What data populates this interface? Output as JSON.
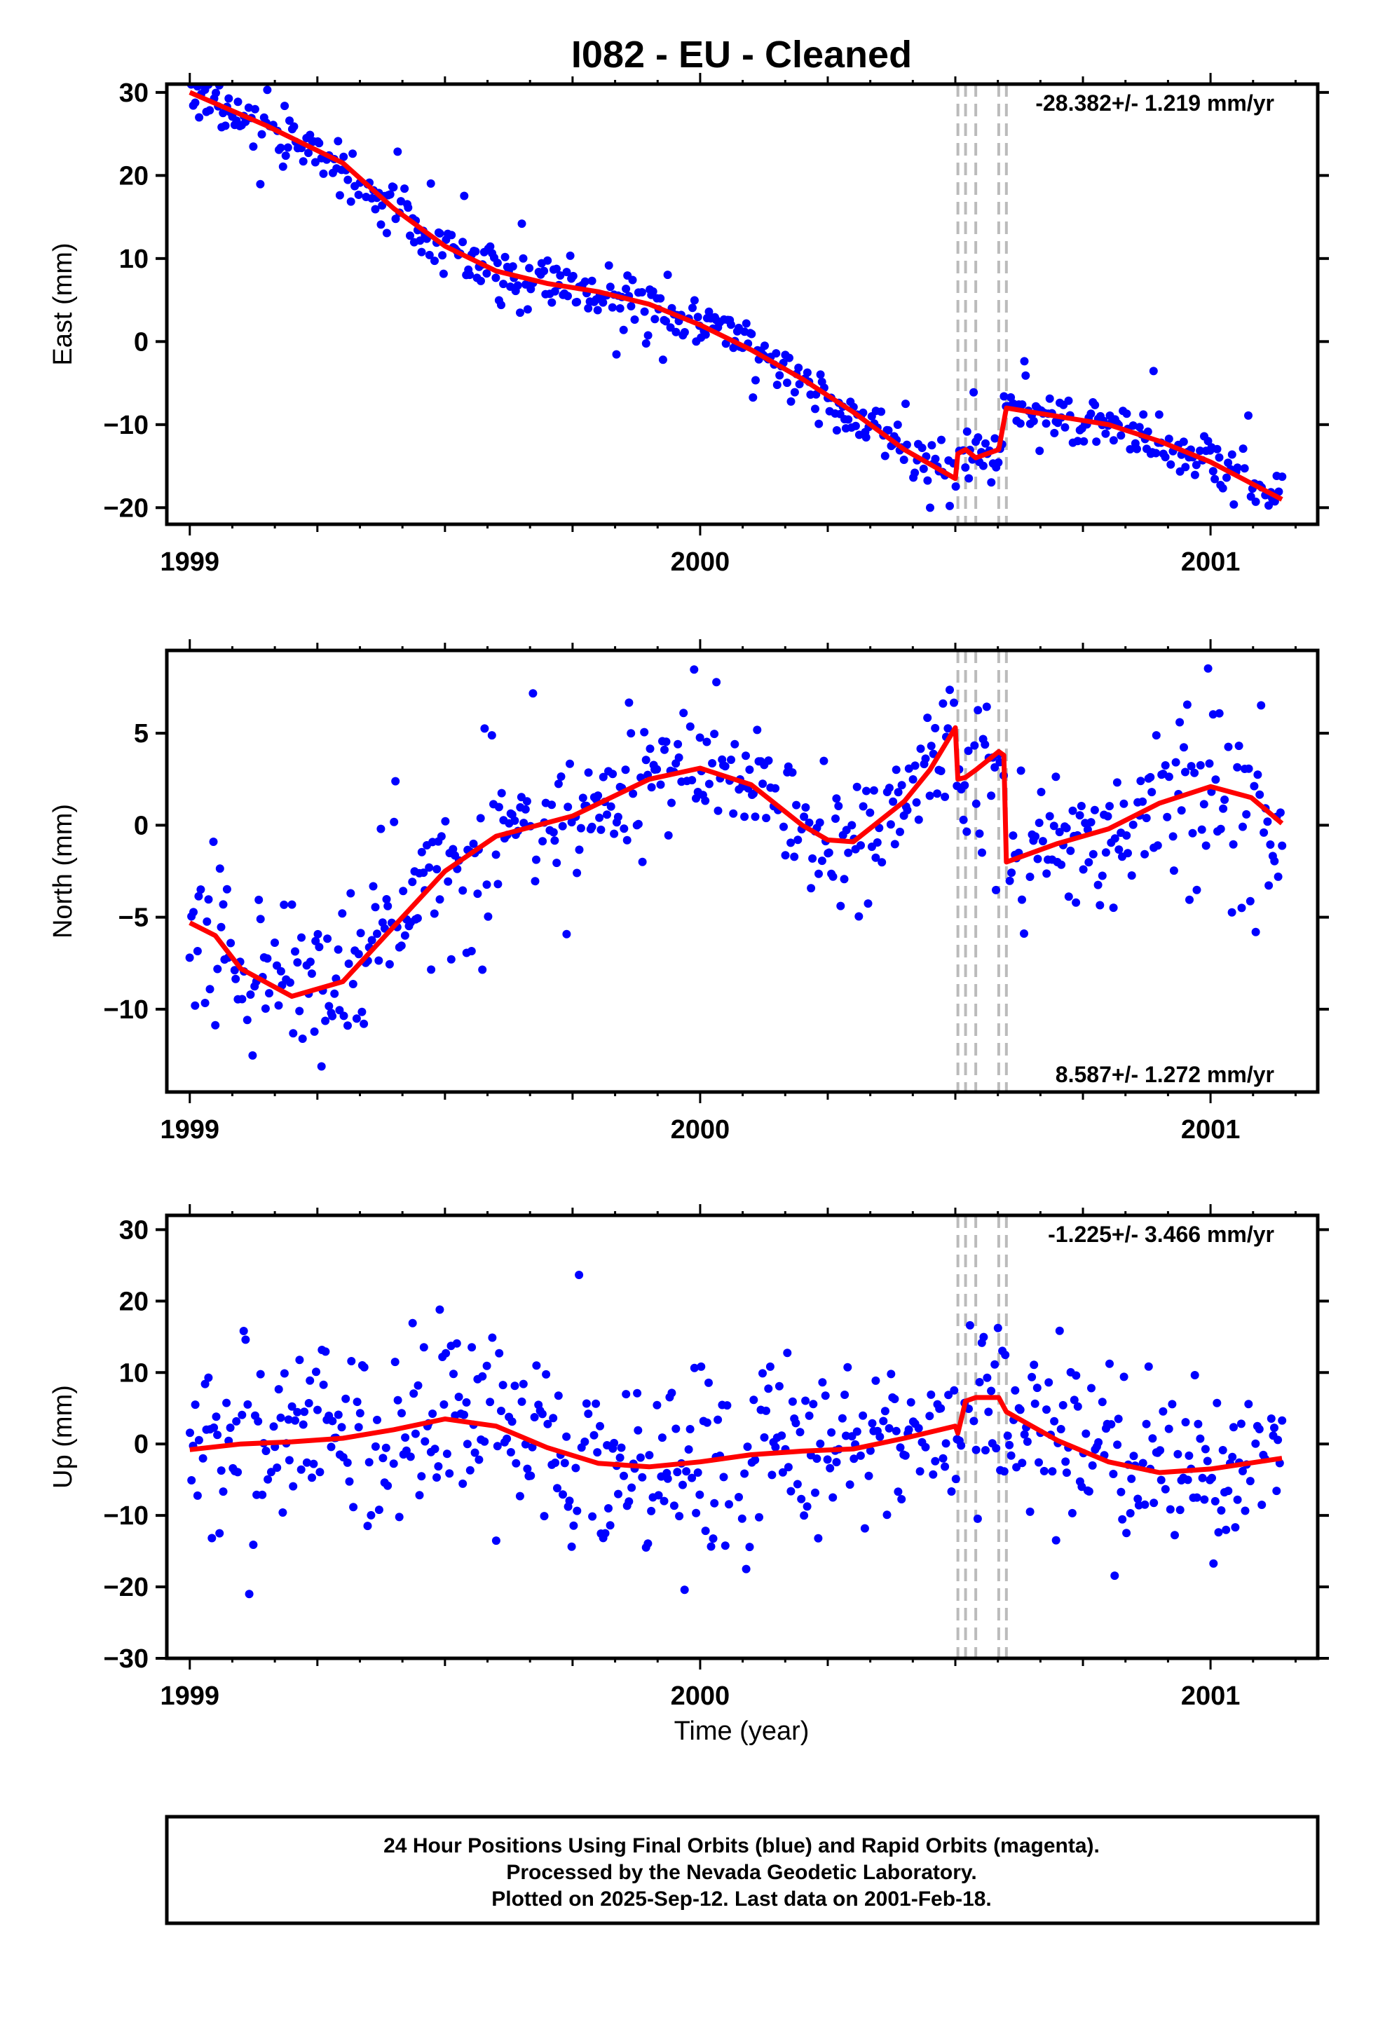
{
  "title": "I082  - EU - Cleaned",
  "xlabel": "Time (year)",
  "colors": {
    "data": "#0000ff",
    "model": "#ff0000",
    "steps": "#bbbbbb",
    "frame": "#000000"
  },
  "footer": {
    "line1": "24 Hour Positions Using Final Orbits (blue) and Rapid Orbits (magenta).",
    "line2": "Processed by the Nevada Geodetic Laboratory.",
    "line3": "Plotted on 2025-Sep-12. Last data on 2001-Feb-18."
  },
  "chart_data": [
    {
      "type": "scatter",
      "panel": "east",
      "ylabel": "East (mm)",
      "rate_label": "-28.382+/- 1.219 mm/yr",
      "rate_placement": "top-right",
      "xlim": [
        1998.955,
        2001.21
      ],
      "ylim": [
        -22,
        31
      ],
      "xticks": [
        "1999",
        "2000",
        "2001"
      ],
      "yticks": [
        "−20",
        "−10",
        "0",
        "10",
        "20",
        "30"
      ],
      "ytick_values": [
        -20,
        -10,
        0,
        10,
        20,
        30
      ],
      "step_epochs": [
        2000.505,
        2000.52,
        2000.54,
        2000.585,
        2000.6
      ],
      "model_line": [
        [
          1999.0,
          30.0
        ],
        [
          1999.15,
          26.0
        ],
        [
          1999.3,
          21.5
        ],
        [
          1999.4,
          16.0
        ],
        [
          1999.5,
          11.5
        ],
        [
          1999.6,
          8.5
        ],
        [
          1999.7,
          7.0
        ],
        [
          1999.8,
          6.0
        ],
        [
          1999.9,
          4.5
        ],
        [
          2000.0,
          2.0
        ],
        [
          2000.1,
          -1.0
        ],
        [
          2000.2,
          -4.5
        ],
        [
          2000.3,
          -8.5
        ],
        [
          2000.4,
          -13.0
        ],
        [
          2000.5,
          -16.5
        ],
        [
          2000.505,
          -13.5
        ],
        [
          2000.52,
          -13.0
        ],
        [
          2000.54,
          -14.0
        ],
        [
          2000.585,
          -13.0
        ],
        [
          2000.6,
          -8.0
        ],
        [
          2000.7,
          -9.0
        ],
        [
          2000.8,
          -10.0
        ],
        [
          2000.9,
          -12.0
        ],
        [
          2001.0,
          -14.5
        ],
        [
          2001.14,
          -19.0
        ]
      ],
      "series_params": {
        "trend": "model_line",
        "noise_mm": 1.6,
        "outlier_mm": 4,
        "count": 590,
        "seed": 11
      }
    },
    {
      "type": "scatter",
      "panel": "north",
      "ylabel": "North (mm)",
      "rate_label": "8.587+/- 1.272 mm/yr",
      "rate_placement": "bottom-right",
      "xlim": [
        1998.955,
        2001.21
      ],
      "ylim": [
        -14.5,
        9.5
      ],
      "xticks": [
        "1999",
        "2000",
        "2001"
      ],
      "yticks": [
        "−10",
        "−5",
        "0",
        "5"
      ],
      "ytick_values": [
        -10,
        -5,
        0,
        5
      ],
      "step_epochs": [
        2000.505,
        2000.52,
        2000.54,
        2000.585,
        2000.6
      ],
      "model_line": [
        [
          1999.0,
          -5.3
        ],
        [
          1999.05,
          -6.0
        ],
        [
          1999.1,
          -7.8
        ],
        [
          1999.2,
          -9.3
        ],
        [
          1999.3,
          -8.5
        ],
        [
          1999.4,
          -5.5
        ],
        [
          1999.5,
          -2.5
        ],
        [
          1999.6,
          -0.6
        ],
        [
          1999.75,
          0.5
        ],
        [
          1999.9,
          2.5
        ],
        [
          2000.0,
          3.1
        ],
        [
          2000.1,
          2.2
        ],
        [
          2000.2,
          0.0
        ],
        [
          2000.25,
          -0.8
        ],
        [
          2000.3,
          -0.9
        ],
        [
          2000.4,
          1.3
        ],
        [
          2000.45,
          3.0
        ],
        [
          2000.5,
          5.3
        ],
        [
          2000.505,
          2.5
        ],
        [
          2000.52,
          2.6
        ],
        [
          2000.54,
          3.0
        ],
        [
          2000.585,
          4.0
        ],
        [
          2000.595,
          3.8
        ],
        [
          2000.6,
          -2.0
        ],
        [
          2000.7,
          -1.0
        ],
        [
          2000.8,
          -0.2
        ],
        [
          2000.9,
          1.2
        ],
        [
          2001.0,
          2.1
        ],
        [
          2001.08,
          1.5
        ],
        [
          2001.14,
          0.1
        ]
      ],
      "series_params": {
        "trend": "model_line",
        "noise_mm": 1.8,
        "outlier_mm": 4,
        "count": 590,
        "seed": 23
      }
    },
    {
      "type": "scatter",
      "panel": "up",
      "ylabel": "Up (mm)",
      "rate_label": "-1.225+/- 3.466 mm/yr",
      "rate_placement": "top-right",
      "xlim": [
        1998.955,
        2001.21
      ],
      "ylim": [
        -30,
        32
      ],
      "xticks": [
        "1999",
        "2000",
        "2001"
      ],
      "yticks": [
        "−30",
        "−20",
        "−10",
        "0",
        "10",
        "20",
        "30"
      ],
      "ytick_values": [
        -30,
        -20,
        -10,
        0,
        10,
        20,
        30
      ],
      "step_epochs": [
        2000.505,
        2000.52,
        2000.54,
        2000.585,
        2000.6
      ],
      "model_line": [
        [
          1999.0,
          -0.8
        ],
        [
          1999.1,
          0.0
        ],
        [
          1999.2,
          0.3
        ],
        [
          1999.3,
          0.8
        ],
        [
          1999.4,
          2.0
        ],
        [
          1999.5,
          3.5
        ],
        [
          1999.6,
          2.5
        ],
        [
          1999.7,
          -0.5
        ],
        [
          1999.8,
          -2.7
        ],
        [
          1999.9,
          -3.2
        ],
        [
          2000.0,
          -2.5
        ],
        [
          2000.1,
          -1.5
        ],
        [
          2000.2,
          -1.0
        ],
        [
          2000.3,
          -0.7
        ],
        [
          2000.4,
          0.8
        ],
        [
          2000.5,
          2.5
        ],
        [
          2000.505,
          1.5
        ],
        [
          2000.52,
          6.0
        ],
        [
          2000.54,
          6.5
        ],
        [
          2000.585,
          6.5
        ],
        [
          2000.6,
          4.5
        ],
        [
          2000.7,
          0.5
        ],
        [
          2000.8,
          -2.5
        ],
        [
          2000.9,
          -4.0
        ],
        [
          2001.0,
          -3.5
        ],
        [
          2001.14,
          -2.0
        ]
      ],
      "series_params": {
        "trend": "model_line",
        "noise_mm": 6.0,
        "outlier_mm": 10,
        "count": 590,
        "seed": 37
      }
    }
  ]
}
